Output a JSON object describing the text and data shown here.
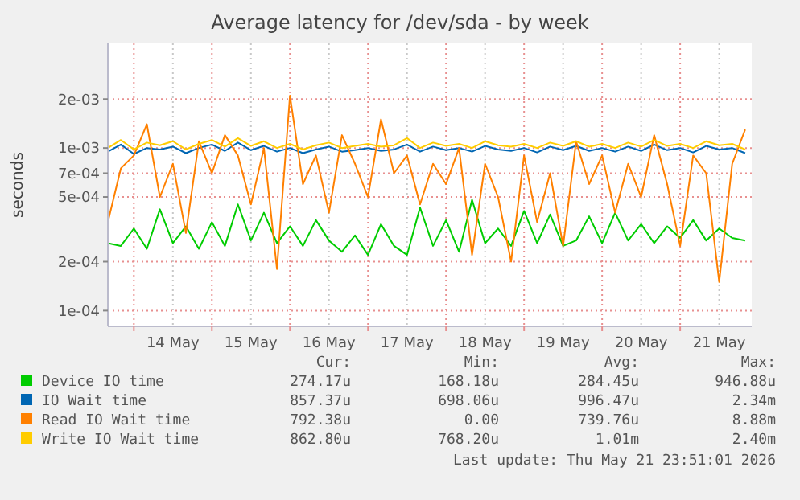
{
  "chart_data": {
    "type": "line",
    "title": "Average latency for /dev/sda - by week",
    "ylabel": "seconds",
    "log": "y",
    "grid": true,
    "legend": "bottom",
    "marker": "none",
    "line_style": "solid",
    "x": [
      "2026-05-13T16:00",
      "2026-05-13T20:00",
      "2026-05-14T00:00",
      "2026-05-14T04:00",
      "2026-05-14T08:00",
      "2026-05-14T12:00",
      "2026-05-14T16:00",
      "2026-05-14T20:00",
      "2026-05-15T00:00",
      "2026-05-15T04:00",
      "2026-05-15T08:00",
      "2026-05-15T12:00",
      "2026-05-15T16:00",
      "2026-05-15T20:00",
      "2026-05-16T00:00",
      "2026-05-16T04:00",
      "2026-05-16T08:00",
      "2026-05-16T12:00",
      "2026-05-16T16:00",
      "2026-05-16T20:00",
      "2026-05-17T00:00",
      "2026-05-17T04:00",
      "2026-05-17T08:00",
      "2026-05-17T12:00",
      "2026-05-17T16:00",
      "2026-05-17T20:00",
      "2026-05-18T00:00",
      "2026-05-18T04:00",
      "2026-05-18T08:00",
      "2026-05-18T12:00",
      "2026-05-18T16:00",
      "2026-05-18T20:00",
      "2026-05-19T00:00",
      "2026-05-19T04:00",
      "2026-05-19T08:00",
      "2026-05-19T12:00",
      "2026-05-19T16:00",
      "2026-05-19T20:00",
      "2026-05-20T00:00",
      "2026-05-20T04:00",
      "2026-05-20T08:00",
      "2026-05-20T12:00",
      "2026-05-20T16:00",
      "2026-05-20T20:00",
      "2026-05-21T00:00",
      "2026-05-21T04:00",
      "2026-05-21T08:00",
      "2026-05-21T12:00",
      "2026-05-21T16:00",
      "2026-05-21T20:00"
    ],
    "xlim": [
      "2026-05-13T16:00",
      "2026-05-21T22:00"
    ],
    "xticks": [
      {
        "value": "2026-05-14T00:00",
        "label": null
      },
      {
        "value": "2026-05-14T12:00",
        "label": "14 May"
      },
      {
        "value": "2026-05-15T00:00",
        "label": null
      },
      {
        "value": "2026-05-15T12:00",
        "label": "15 May"
      },
      {
        "value": "2026-05-16T00:00",
        "label": null
      },
      {
        "value": "2026-05-16T12:00",
        "label": "16 May"
      },
      {
        "value": "2026-05-17T00:00",
        "label": null
      },
      {
        "value": "2026-05-17T12:00",
        "label": "17 May"
      },
      {
        "value": "2026-05-18T00:00",
        "label": null
      },
      {
        "value": "2026-05-18T12:00",
        "label": "18 May"
      },
      {
        "value": "2026-05-19T00:00",
        "label": null
      },
      {
        "value": "2026-05-19T12:00",
        "label": "19 May"
      },
      {
        "value": "2026-05-20T00:00",
        "label": null
      },
      {
        "value": "2026-05-20T12:00",
        "label": "20 May"
      },
      {
        "value": "2026-05-21T00:00",
        "label": null
      },
      {
        "value": "2026-05-21T12:00",
        "label": "21 May"
      }
    ],
    "ylim": [
      8e-05,
      0.0044
    ],
    "yticks": [
      {
        "value": 0.0001,
        "label": "1e-04"
      },
      {
        "value": 0.0002,
        "label": "2e-04"
      },
      {
        "value": 0.0005,
        "label": "5e-04"
      },
      {
        "value": 0.0007,
        "label": "7e-04"
      },
      {
        "value": 0.001,
        "label": "1e-03"
      },
      {
        "value": 0.002,
        "label": "2e-03"
      }
    ],
    "series": [
      {
        "name": "Device IO time",
        "color": "#00cc00",
        "values": [
          0.00026,
          0.00025,
          0.00032,
          0.00024,
          0.00042,
          0.00026,
          0.00033,
          0.00024,
          0.00035,
          0.00025,
          0.00045,
          0.00027,
          0.0004,
          0.00026,
          0.00033,
          0.00025,
          0.00036,
          0.00027,
          0.00023,
          0.00029,
          0.00022,
          0.00034,
          0.00025,
          0.00022,
          0.00043,
          0.00025,
          0.00036,
          0.00023,
          0.00048,
          0.00026,
          0.00032,
          0.00025,
          0.00041,
          0.00026,
          0.00039,
          0.00025,
          0.00027,
          0.00038,
          0.00026,
          0.0004,
          0.00027,
          0.00034,
          0.00026,
          0.00033,
          0.00028,
          0.00036,
          0.00027,
          0.00032,
          0.00028,
          0.00027
        ]
      },
      {
        "name": "IO Wait time",
        "color": "#0066b3",
        "values": [
          0.00095,
          0.00105,
          0.00092,
          0.001,
          0.00098,
          0.00102,
          0.00093,
          0.001,
          0.00105,
          0.00096,
          0.00108,
          0.00097,
          0.00103,
          0.00095,
          0.001,
          0.00093,
          0.00098,
          0.00102,
          0.00095,
          0.00097,
          0.001,
          0.00096,
          0.00098,
          0.00105,
          0.00095,
          0.00102,
          0.00097,
          0.001,
          0.00095,
          0.00103,
          0.00098,
          0.00096,
          0.001,
          0.00094,
          0.00102,
          0.00097,
          0.00103,
          0.00096,
          0.001,
          0.00095,
          0.00102,
          0.00096,
          0.00105,
          0.00097,
          0.001,
          0.00094,
          0.00103,
          0.00098,
          0.001,
          0.00093
        ]
      },
      {
        "name": "Read IO Wait time",
        "color": "#ff8000",
        "values": [
          0.00035,
          0.00075,
          0.0009,
          0.0014,
          0.0005,
          0.0008,
          0.0003,
          0.0011,
          0.0007,
          0.0012,
          0.0009,
          0.00045,
          0.001,
          0.00018,
          0.0021,
          0.0006,
          0.0009,
          0.0004,
          0.0012,
          0.0008,
          0.0005,
          0.0015,
          0.0007,
          0.0009,
          0.00045,
          0.0008,
          0.0006,
          0.001,
          0.00022,
          0.0008,
          0.0005,
          0.0002,
          0.0009,
          0.00035,
          0.0007,
          0.00025,
          0.0011,
          0.0006,
          0.0009,
          0.0004,
          0.0008,
          0.0005,
          0.0012,
          0.0006,
          0.00025,
          0.0009,
          0.0007,
          0.00015,
          0.0008,
          0.0013
        ]
      },
      {
        "name": "Write IO Wait time",
        "color": "#ffcc00",
        "values": [
          0.001,
          0.00112,
          0.00098,
          0.00108,
          0.00104,
          0.0011,
          0.00098,
          0.00106,
          0.00112,
          0.00102,
          0.00115,
          0.00103,
          0.0011,
          0.001,
          0.00106,
          0.00098,
          0.00104,
          0.00108,
          0.001,
          0.00103,
          0.00106,
          0.00102,
          0.00104,
          0.00115,
          0.001,
          0.00108,
          0.00103,
          0.00106,
          0.001,
          0.0011,
          0.00104,
          0.00102,
          0.00106,
          0.001,
          0.00108,
          0.00103,
          0.0011,
          0.00102,
          0.00106,
          0.001,
          0.00108,
          0.00102,
          0.00112,
          0.00103,
          0.00106,
          0.001,
          0.0011,
          0.00104,
          0.00106,
          0.00098
        ]
      }
    ],
    "annotations": [
      "Cur:",
      "Min:",
      "Avg:",
      "Max:",
      "274.17u",
      "168.18u",
      "284.45u",
      "946.88u",
      "857.37u",
      "698.06u",
      "996.47u",
      "2.34m",
      "792.38u",
      "0.00",
      "739.76u",
      "8.88m",
      "862.80u",
      "768.20u",
      "1.01m",
      "2.40m",
      "Last update: Thu May 21 23:51:01 2026"
    ]
  }
}
